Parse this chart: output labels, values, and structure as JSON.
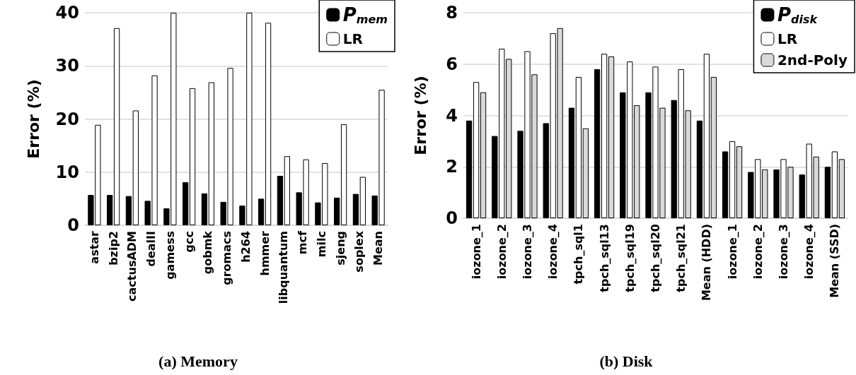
{
  "chart_data": [
    {
      "type": "bar",
      "title": "(a) Memory",
      "ylabel": "Error (%)",
      "categories": [
        "astar",
        "bzip2",
        "cactusADM",
        "dealII",
        "gamess",
        "gcc",
        "gobmk",
        "gromacs",
        "h264",
        "hmmer",
        "libquantum",
        "mcf",
        "milc",
        "sjeng",
        "soplex",
        "Mean"
      ],
      "series": [
        {
          "name": "P$_{mem}$",
          "color": "#000000",
          "values": [
            5.7,
            5.7,
            5.5,
            4.6,
            3.2,
            8.1,
            6.0,
            4.4,
            3.7,
            5.0,
            9.3,
            6.2,
            4.3,
            5.2,
            5.9,
            5.6
          ]
        },
        {
          "name": "LR",
          "color": "#ffffff",
          "values": [
            18.9,
            37.1,
            21.6,
            28.2,
            40,
            25.8,
            26.9,
            29.6,
            40,
            38.1,
            13.0,
            12.4,
            11.7,
            19.0,
            9.1,
            25.5
          ]
        }
      ],
      "ylim": [
        0,
        40
      ],
      "yticks": [
        0,
        10,
        20,
        30,
        40
      ],
      "grid": "y",
      "legend": "top right"
    },
    {
      "type": "bar",
      "title": "(b) Disk",
      "ylabel": "Error (%)",
      "categories": [
        "iozone_1",
        "iozone_2",
        "iozone_3",
        "iozone_4",
        "tpch_sql1",
        "tpch_sql13",
        "tpch_sql19",
        "tpch_sql20",
        "tpch_sql21",
        "Mean (HDD)",
        "iozone_1",
        "iozone_2",
        "iozone_3",
        "iozone_4",
        "Mean (SSD)"
      ],
      "series": [
        {
          "name": "P$_{disk}$",
          "color": "#000000",
          "values": [
            3.8,
            3.2,
            3.4,
            3.7,
            4.3,
            5.8,
            4.9,
            4.9,
            4.6,
            3.8,
            2.6,
            1.8,
            1.9,
            1.7,
            2.0
          ]
        },
        {
          "name": "LR",
          "color": "#ffffff",
          "values": [
            5.3,
            6.6,
            6.5,
            7.2,
            5.5,
            6.4,
            6.1,
            5.9,
            5.8,
            6.4,
            3.0,
            2.3,
            2.3,
            2.9,
            2.6
          ]
        },
        {
          "name": "2nd-Poly",
          "color": "#d9d9d9",
          "values": [
            4.9,
            6.2,
            5.6,
            7.4,
            3.5,
            6.3,
            4.4,
            4.3,
            4.2,
            5.5,
            2.8,
            1.9,
            2.0,
            2.4,
            2.3
          ]
        }
      ],
      "ylim": [
        0,
        8
      ],
      "yticks": [
        0,
        2,
        4,
        6,
        8
      ],
      "grid": "y",
      "legend": "top right"
    }
  ]
}
